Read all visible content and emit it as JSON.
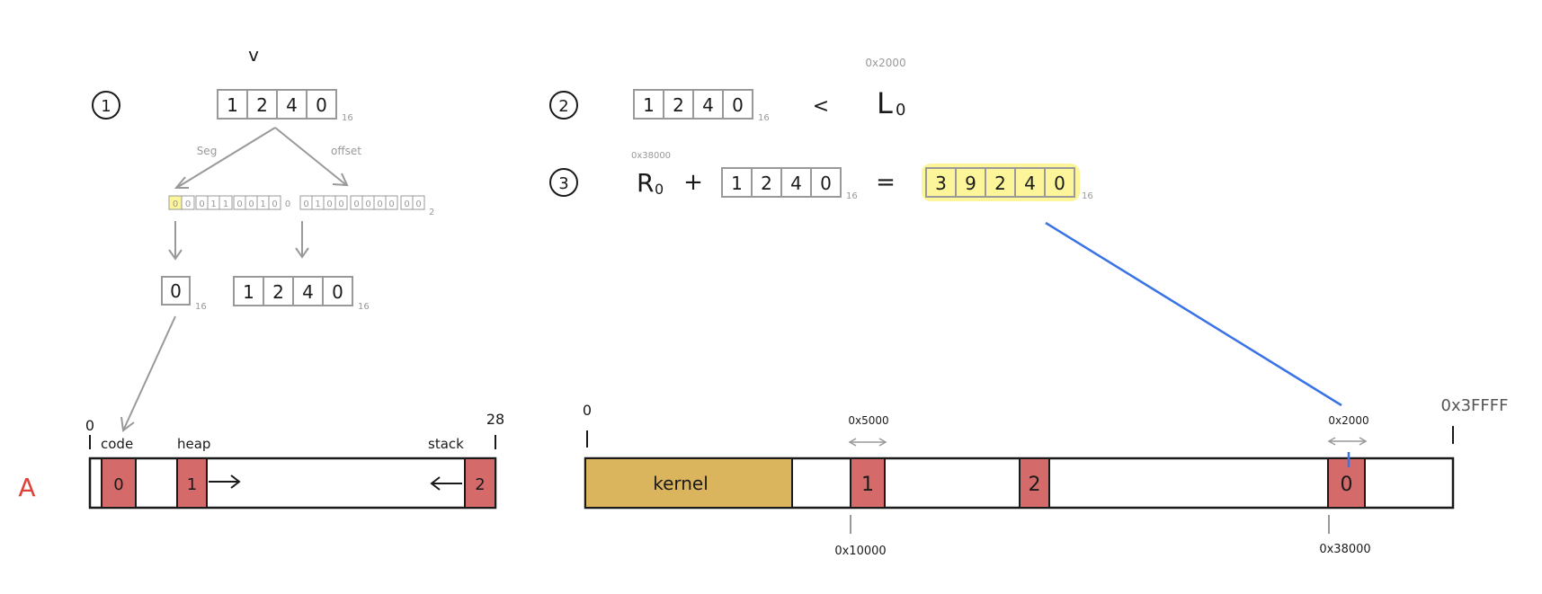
{
  "step_labels": [
    "1",
    "2",
    "3"
  ],
  "variable_label": "v",
  "address_digits": [
    "1",
    "2",
    "4",
    "0"
  ],
  "base_subscript": "16",
  "binary_subscript": "2",
  "split_labels": {
    "segment": "Seg",
    "offset": "offset"
  },
  "binary_bits": {
    "segment_bits": [
      "0",
      "0"
    ],
    "offset_bits": [
      "0",
      "1",
      "1",
      "0",
      "0",
      "1",
      "0",
      "0",
      "1",
      "0",
      "0",
      "0",
      "0",
      "0",
      "0",
      "0"
    ],
    "trailing_bit": "0"
  },
  "segment_number": "0",
  "step2": {
    "comparator": "<",
    "limit_label": "L",
    "limit_subscript": "0",
    "limit_value": "0x2000"
  },
  "step3": {
    "base_label": "R",
    "base_subscript": "0",
    "base_value": "0x38000",
    "plus": "+",
    "equals": "=",
    "result_digits": [
      "3",
      "9",
      "2",
      "4",
      "0"
    ]
  },
  "process_memory": {
    "process_label": "A",
    "start_label": "0",
    "end_label": "28",
    "region_labels": {
      "code": "code",
      "heap": "heap",
      "stack": "stack"
    },
    "segments": [
      "0",
      "1",
      "2"
    ]
  },
  "physical_memory": {
    "start_label": "0",
    "end_label": "0x3FFFF",
    "kernel_label": "kernel",
    "segments": [
      "1",
      "2",
      "0"
    ],
    "seg1_size": "0x5000",
    "seg1_base": "0x10000",
    "seg0_size": "0x2000",
    "seg0_base": "0x38000"
  },
  "colors": {
    "ink": "#1a1a1a",
    "gray": "#999999",
    "segment_fill": "#d46a6a",
    "kernel_fill": "#dbb45e",
    "highlight": "#fcf59a",
    "link_line": "#3a73e6",
    "process_label": "#e0403a"
  }
}
